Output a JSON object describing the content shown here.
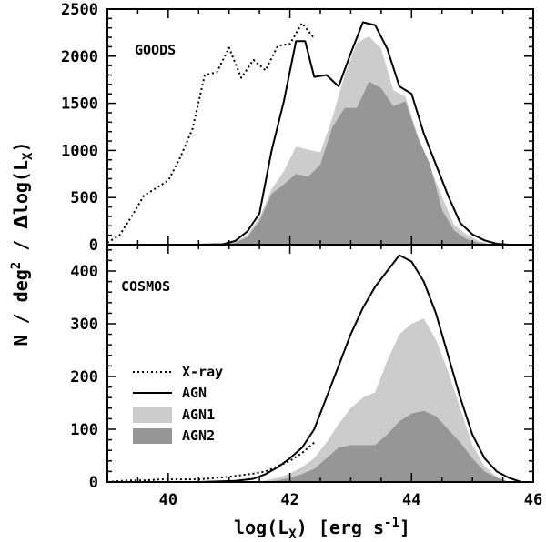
{
  "chart_data": {
    "type": "area",
    "xlabel": "log(L_X) [erg s⁻¹]",
    "ylabel": "N / deg² / Δlog(L_X)",
    "xlim": [
      39,
      46
    ],
    "x_ticks": [
      40,
      42,
      44,
      46
    ],
    "legend": {
      "placement": "left, lower panel",
      "entries": [
        {
          "label": "X-ray",
          "style": "dotted line"
        },
        {
          "label": "AGN",
          "style": "solid line"
        },
        {
          "label": "AGN1",
          "style": "light grey fill"
        },
        {
          "label": "AGN2",
          "style": "dark grey fill"
        }
      ]
    },
    "colors": {
      "agn1": "#cccccc",
      "agn2": "#969696",
      "line": "#000000"
    },
    "panels": [
      {
        "label": "GOODS",
        "ylim": [
          0,
          2500
        ],
        "y_ticks": [
          0,
          500,
          1000,
          1500,
          2000,
          2500
        ],
        "series": [
          {
            "name": "X-ray",
            "style": "dotted",
            "x": [
              39.0,
              39.2,
              39.4,
              39.6,
              39.8,
              40.0,
              40.2,
              40.4,
              40.6,
              40.8,
              41.0,
              41.2,
              41.4,
              41.6,
              41.8,
              42.0,
              42.2,
              42.4
            ],
            "y": [
              20,
              100,
              300,
              520,
              600,
              680,
              930,
              1230,
              1800,
              1830,
              2090,
              1770,
              1960,
              1850,
              2110,
              2130,
              2350,
              2190
            ]
          },
          {
            "name": "AGN",
            "style": "solid",
            "x": [
              40.5,
              40.7,
              40.9,
              41.1,
              41.3,
              41.5,
              41.7,
              41.9,
              42.1,
              42.25,
              42.4,
              42.6,
              42.8,
              43.0,
              43.2,
              43.4,
              43.6,
              43.8,
              44.0,
              44.2,
              44.4,
              44.6,
              44.8,
              45.0,
              45.2,
              45.4,
              45.6
            ],
            "y": [
              0,
              2,
              5,
              40,
              140,
              330,
              1000,
              1520,
              2160,
              2160,
              1780,
              1800,
              1680,
              2030,
              2360,
              2330,
              2080,
              1680,
              1600,
              1180,
              850,
              520,
              230,
              110,
              45,
              10,
              0
            ]
          },
          {
            "name": "AGN1",
            "style": "fill",
            "x": [
              40.7,
              40.9,
              41.1,
              41.3,
              41.5,
              41.7,
              41.9,
              42.1,
              42.3,
              42.5,
              42.7,
              42.9,
              43.1,
              43.3,
              43.5,
              43.7,
              43.9,
              44.1,
              44.3,
              44.5,
              44.7,
              44.9,
              45.1,
              45.3,
              45.5
            ],
            "y": [
              0,
              5,
              30,
              100,
              290,
              590,
              780,
              1040,
              1010,
              980,
              1350,
              1800,
              2140,
              2210,
              2080,
              1640,
              1570,
              1160,
              830,
              510,
              210,
              110,
              40,
              10,
              0
            ]
          },
          {
            "name": "AGN2",
            "style": "fill",
            "x": [
              40.7,
              40.9,
              41.1,
              41.3,
              41.5,
              41.7,
              41.9,
              42.1,
              42.3,
              42.5,
              42.7,
              42.9,
              43.1,
              43.3,
              43.5,
              43.7,
              43.9,
              44.1,
              44.3,
              44.5,
              44.7,
              44.9,
              45.1,
              45.3,
              45.5
            ],
            "y": [
              0,
              5,
              20,
              80,
              250,
              540,
              640,
              750,
              720,
              850,
              1250,
              1450,
              1450,
              1730,
              1660,
              1470,
              1520,
              1140,
              860,
              370,
              150,
              60,
              20,
              5,
              0
            ]
          }
        ]
      },
      {
        "label": "COSMOS",
        "ylim": [
          0,
          450
        ],
        "y_ticks": [
          0,
          100,
          200,
          300,
          400
        ],
        "series": [
          {
            "name": "X-ray",
            "style": "dotted",
            "x": [
              39.0,
              39.3,
              39.6,
              39.9,
              40.2,
              40.5,
              40.8,
              41.0,
              41.2,
              41.4,
              41.6,
              41.8,
              42.0,
              42.2,
              42.4
            ],
            "y": [
              0,
              3,
              3,
              5,
              5,
              5,
              8,
              10,
              13,
              16,
              20,
              30,
              40,
              55,
              75
            ]
          },
          {
            "name": "AGN",
            "style": "solid",
            "x": [
              40.5,
              40.8,
              41.1,
              41.4,
              41.6,
              41.8,
              42.0,
              42.2,
              42.4,
              42.6,
              42.8,
              43.0,
              43.2,
              43.4,
              43.6,
              43.8,
              44.0,
              44.2,
              44.4,
              44.6,
              44.8,
              45.0,
              45.2,
              45.4,
              45.6,
              45.8
            ],
            "y": [
              0,
              1,
              2,
              6,
              15,
              28,
              45,
              65,
              100,
              160,
              220,
              280,
              330,
              370,
              400,
              430,
              418,
              380,
              320,
              240,
              160,
              90,
              45,
              20,
              8,
              0
            ]
          },
          {
            "name": "AGN1",
            "style": "fill",
            "x": [
              41.4,
              41.6,
              41.8,
              42.0,
              42.2,
              42.4,
              42.6,
              42.8,
              43.0,
              43.2,
              43.4,
              43.6,
              43.8,
              44.0,
              44.2,
              44.4,
              44.6,
              44.8,
              45.0,
              45.2,
              45.4,
              45.6
            ],
            "y": [
              0,
              3,
              8,
              16,
              28,
              45,
              75,
              110,
              140,
              160,
              170,
              230,
              280,
              300,
              310,
              270,
              210,
              140,
              70,
              30,
              10,
              0
            ]
          },
          {
            "name": "AGN2",
            "style": "fill",
            "x": [
              41.6,
              41.8,
              42.0,
              42.2,
              42.4,
              42.6,
              42.8,
              43.0,
              43.2,
              43.4,
              43.6,
              43.8,
              44.0,
              44.2,
              44.4,
              44.6,
              44.8,
              45.0,
              45.2,
              45.4,
              45.6
            ],
            "y": [
              0,
              3,
              8,
              15,
              25,
              45,
              65,
              70,
              70,
              70,
              90,
              115,
              130,
              135,
              125,
              100,
              75,
              45,
              20,
              8,
              0
            ]
          }
        ]
      }
    ]
  }
}
